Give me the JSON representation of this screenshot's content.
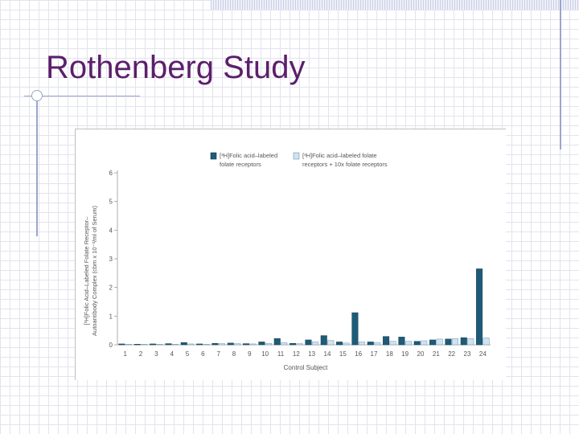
{
  "slide": {
    "title": "Rothenberg Study"
  },
  "chart_data": {
    "type": "bar",
    "title": "",
    "xlabel": "Control Subject",
    "ylabel_line1": "[³H]Folic Acid–Labeled Folate Receptor–",
    "ylabel_line2": "Autoantibody Complex (cbm x 10⁻³/ml of Serum)",
    "ylim": [
      0,
      6
    ],
    "yticks": [
      0,
      1,
      2,
      3,
      4,
      5,
      6
    ],
    "categories": [
      "1",
      "2",
      "3",
      "4",
      "5",
      "6",
      "7",
      "8",
      "9",
      "10",
      "11",
      "12",
      "13",
      "14",
      "15",
      "16",
      "17",
      "18",
      "19",
      "20",
      "21",
      "22",
      "23",
      "24"
    ],
    "series": [
      {
        "name_line1": "[³H]Folic acid–labeled",
        "name_line2": "folate receptors",
        "color": "#1d5b78",
        "values": [
          0.03,
          0.02,
          0.03,
          0.04,
          0.08,
          0.03,
          0.05,
          0.06,
          0.04,
          0.1,
          0.22,
          0.05,
          0.17,
          0.32,
          0.1,
          1.12,
          0.1,
          0.29,
          0.27,
          0.12,
          0.17,
          0.2,
          0.25,
          2.65
        ]
      },
      {
        "name_line1": "[³H]Folic acid–labeled folate",
        "name_line2": "receptors + 10x folate receptors",
        "color": "#cfe3f2",
        "values": [
          0.02,
          0.02,
          0.02,
          0.02,
          0.03,
          0.02,
          0.04,
          0.04,
          0.03,
          0.05,
          0.08,
          0.04,
          0.1,
          0.15,
          0.06,
          0.1,
          0.08,
          0.12,
          0.12,
          0.14,
          0.2,
          0.22,
          0.22,
          0.24
        ]
      }
    ],
    "legend": "top-center",
    "grid": false
  }
}
